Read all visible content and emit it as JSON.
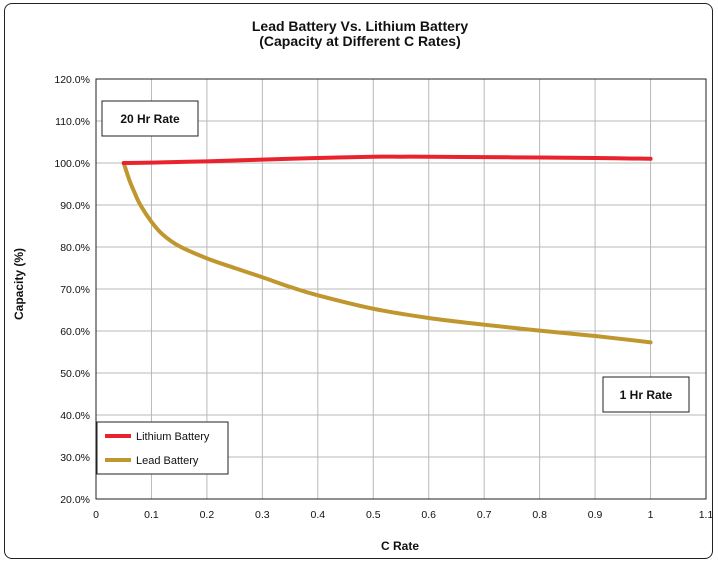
{
  "chart_data": {
    "type": "line",
    "title_lines": [
      "Lead Battery Vs. Lithium Battery",
      "(Capacity at Different C Rates)"
    ],
    "xlabel": "C Rate",
    "ylabel": "Capacity (%)",
    "xlim": [
      0,
      1.1
    ],
    "ylim": [
      20,
      120
    ],
    "grid": true,
    "x_ticks": [
      {
        "v": 0,
        "label": "0"
      },
      {
        "v": 0.1,
        "label": "0.1"
      },
      {
        "v": 0.2,
        "label": "0.2"
      },
      {
        "v": 0.3,
        "label": "0.3"
      },
      {
        "v": 0.4,
        "label": "0.4"
      },
      {
        "v": 0.5,
        "label": "0.5"
      },
      {
        "v": 0.6,
        "label": "0.6"
      },
      {
        "v": 0.7,
        "label": "0.7"
      },
      {
        "v": 0.8,
        "label": "0.8"
      },
      {
        "v": 0.9,
        "label": "0.9"
      },
      {
        "v": 1.0,
        "label": "1"
      },
      {
        "v": 1.1,
        "label": "1.1"
      }
    ],
    "y_ticks": [
      {
        "v": 20,
        "label": "20.0%"
      },
      {
        "v": 30,
        "label": "30.0%"
      },
      {
        "v": 40,
        "label": "40.0%"
      },
      {
        "v": 50,
        "label": "50.0%"
      },
      {
        "v": 60,
        "label": "60.0%"
      },
      {
        "v": 70,
        "label": "70.0%"
      },
      {
        "v": 80,
        "label": "80.0%"
      },
      {
        "v": 90,
        "label": "90.0%"
      },
      {
        "v": 100,
        "label": "100.0%"
      },
      {
        "v": 110,
        "label": "110.0%"
      },
      {
        "v": 120,
        "label": "120.0%"
      }
    ],
    "series": [
      {
        "name": "Lithium Battery",
        "color": "#e8232d",
        "x": [
          0.05,
          0.1,
          0.2,
          0.3,
          0.4,
          0.5,
          0.55,
          0.6,
          0.7,
          0.8,
          0.9,
          1.0
        ],
        "y": [
          100.0,
          100.1,
          100.4,
          100.8,
          101.2,
          101.5,
          101.5,
          101.5,
          101.4,
          101.3,
          101.2,
          101.0
        ]
      },
      {
        "name": "Lead Battery",
        "color": "#c0962f",
        "x": [
          0.05,
          0.06,
          0.07,
          0.08,
          0.1,
          0.12,
          0.15,
          0.2,
          0.25,
          0.3,
          0.35,
          0.4,
          0.5,
          0.6,
          0.7,
          0.8,
          0.9,
          1.0
        ],
        "y": [
          100.0,
          96.0,
          92.8,
          90.0,
          86.0,
          83.0,
          80.2,
          77.3,
          75.0,
          72.8,
          70.5,
          68.5,
          65.3,
          63.1,
          61.5,
          60.1,
          58.8,
          57.3
        ]
      }
    ],
    "legend": {
      "placement": "bottom-left",
      "entries": [
        "Lithium Battery",
        "Lead Battery"
      ]
    },
    "annotations": [
      {
        "text": "20 Hr Rate",
        "placement": "top-left"
      },
      {
        "text": "1 Hr Rate",
        "placement": "bottom-right"
      }
    ]
  }
}
